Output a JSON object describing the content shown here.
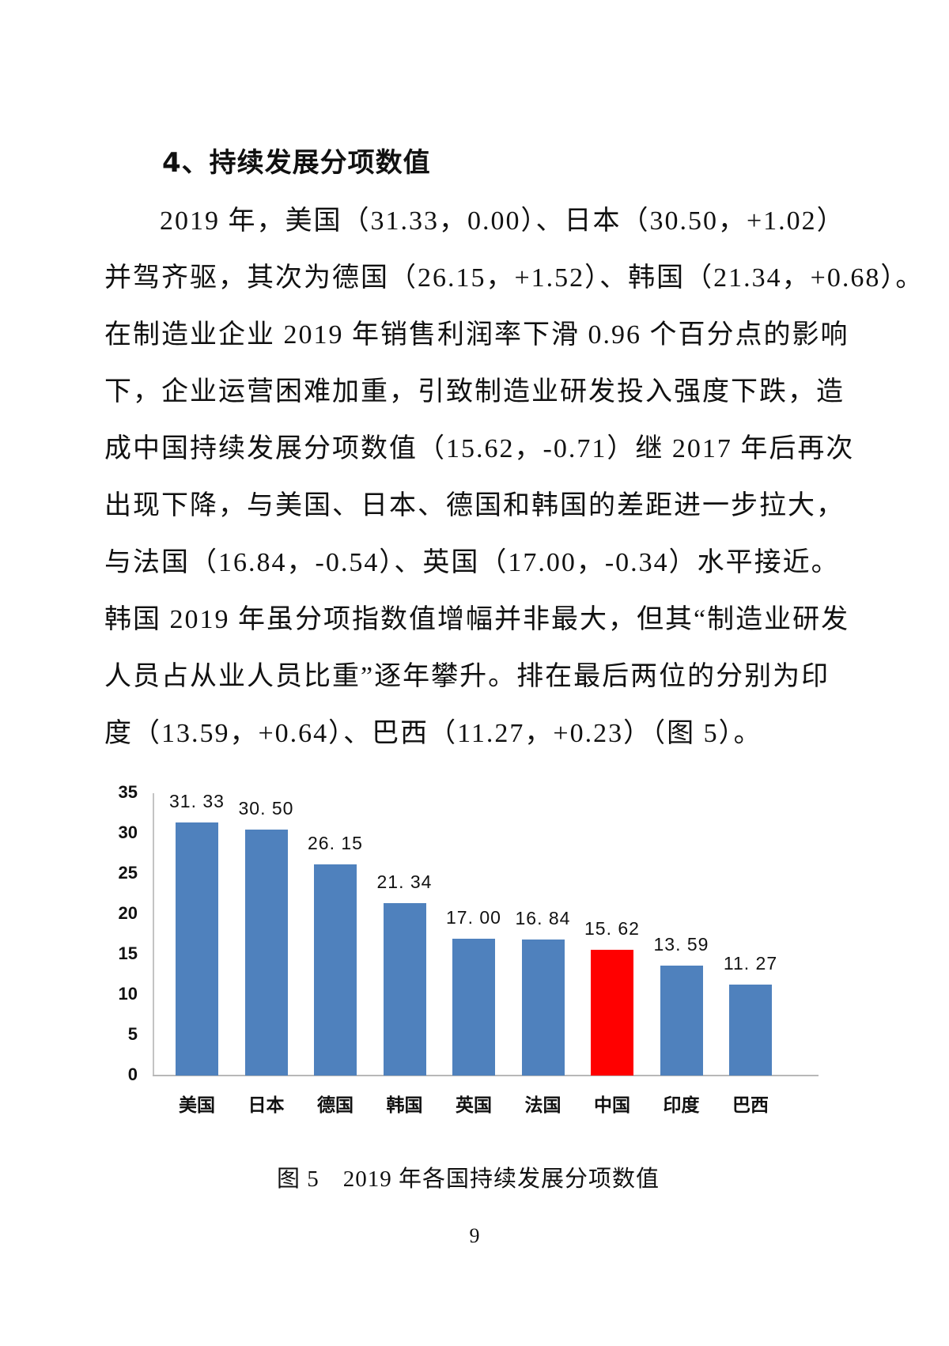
{
  "section": {
    "heading": "4、持续发展分项数值"
  },
  "paragraph": {
    "lines": [
      "2019 年，美国（31.33，0.00）、日本（30.50，+1.02）",
      "并驾齐驱，其次为德国（26.15，+1.52）、韩国（21.34，+0.68）。",
      "在制造业企业 2019 年销售利润率下滑 0.96 个百分点的影响",
      "下，企业运营困难加重，引致制造业研发投入强度下跌，造",
      "成中国持续发展分项数值（15.62，-0.71）继 2017 年后再次",
      "出现下降，与美国、日本、德国和韩国的差距进一步拉大，",
      "与法国（16.84，-0.54）、英国（17.00，-0.34）水平接近。",
      "韩国 2019 年虽分项指数值增幅并非最大，但其“制造业研发",
      "人员占从业人员比重”逐年攀升。排在最后两位的分别为印",
      "度（13.59，+0.64）、巴西（11.27，+0.23）（图 5）。"
    ]
  },
  "chart_data": {
    "type": "bar",
    "title": "图 5　2019 年各国持续发展分项数值",
    "xlabel": "",
    "ylabel": "",
    "categories": [
      "美国",
      "日本",
      "德国",
      "韩国",
      "英国",
      "法国",
      "中国",
      "印度",
      "巴西"
    ],
    "values": [
      31.33,
      30.5,
      26.15,
      21.34,
      17.0,
      16.84,
      15.62,
      13.59,
      11.27
    ],
    "value_labels": [
      "31. 33",
      "30. 50",
      "26. 15",
      "21. 34",
      "17. 00",
      "16. 84",
      "15. 62",
      "13. 59",
      "11. 27"
    ],
    "ylim": [
      0,
      35
    ],
    "yticks": [
      0,
      5,
      10,
      15,
      20,
      25,
      30,
      35
    ],
    "grid": false,
    "legend": null,
    "colors": {
      "default": "#4f81bd",
      "highlight": "#ff0000",
      "highlight_category": "中国"
    }
  },
  "caption": "图 5　2019 年各国持续发展分项数值",
  "page_number": "9"
}
